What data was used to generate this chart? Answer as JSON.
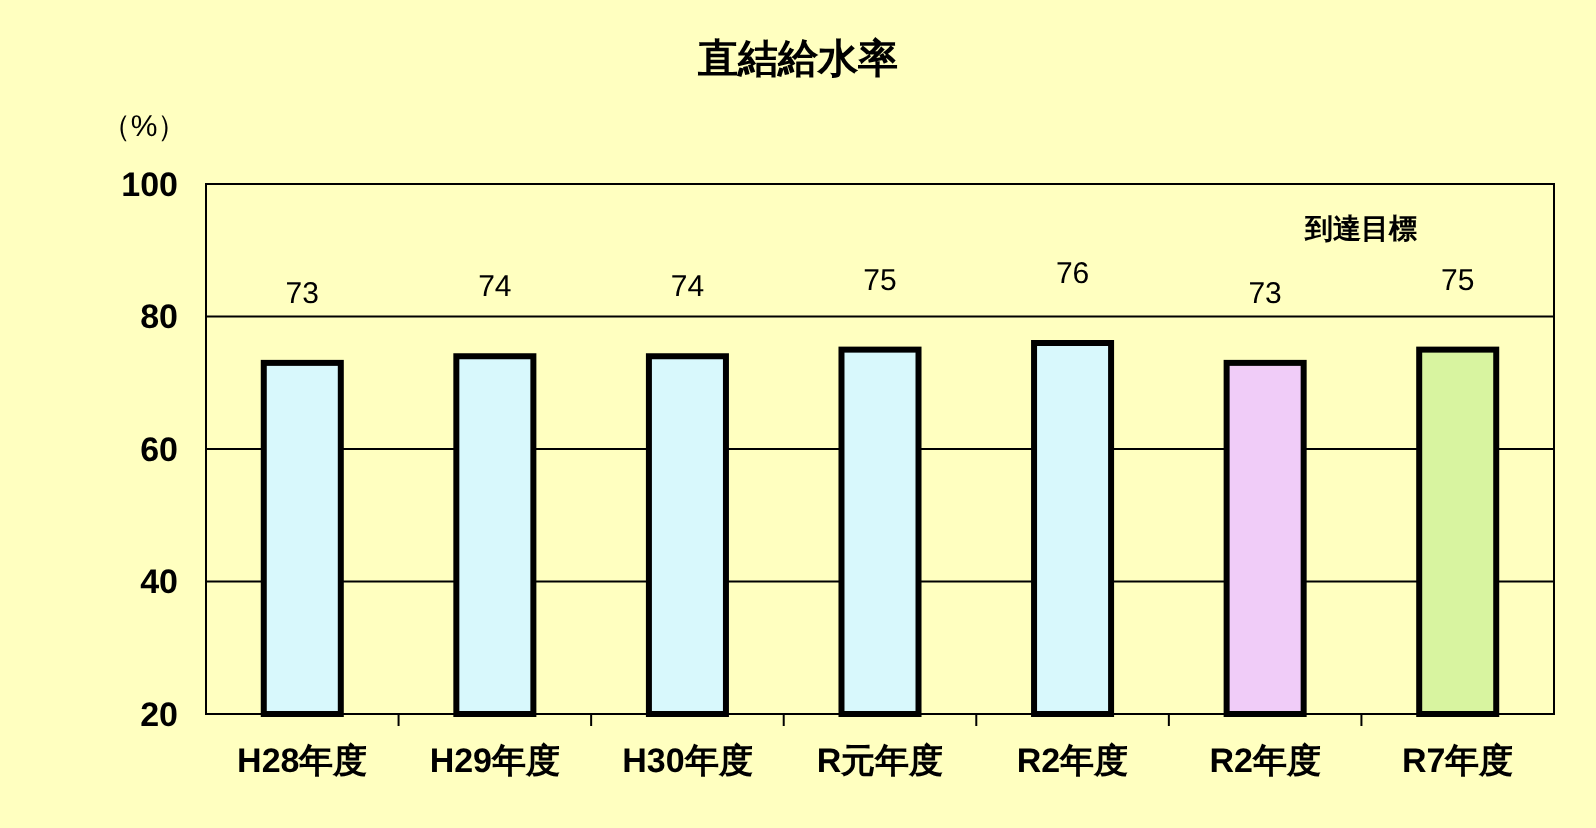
{
  "chart_data": {
    "type": "bar",
    "title": "直結給水率",
    "ylabel": "（%）",
    "categories": [
      "H28年度",
      "H29年度",
      "H30年度",
      "R元年度",
      "R2年度",
      "R2年度",
      "R7年度"
    ],
    "values": [
      73,
      74,
      74,
      75,
      76,
      73,
      75
    ],
    "colors": [
      "#d8f8fc",
      "#d8f8fc",
      "#d8f8fc",
      "#d8f8fc",
      "#d8f8fc",
      "#f0ccf8",
      "#d8f4a0"
    ],
    "ylim": [
      20,
      100
    ],
    "yticks": [
      20,
      40,
      60,
      80,
      100
    ],
    "grid": "y",
    "data_labels": true,
    "annotations": [
      "到達目標"
    ]
  }
}
